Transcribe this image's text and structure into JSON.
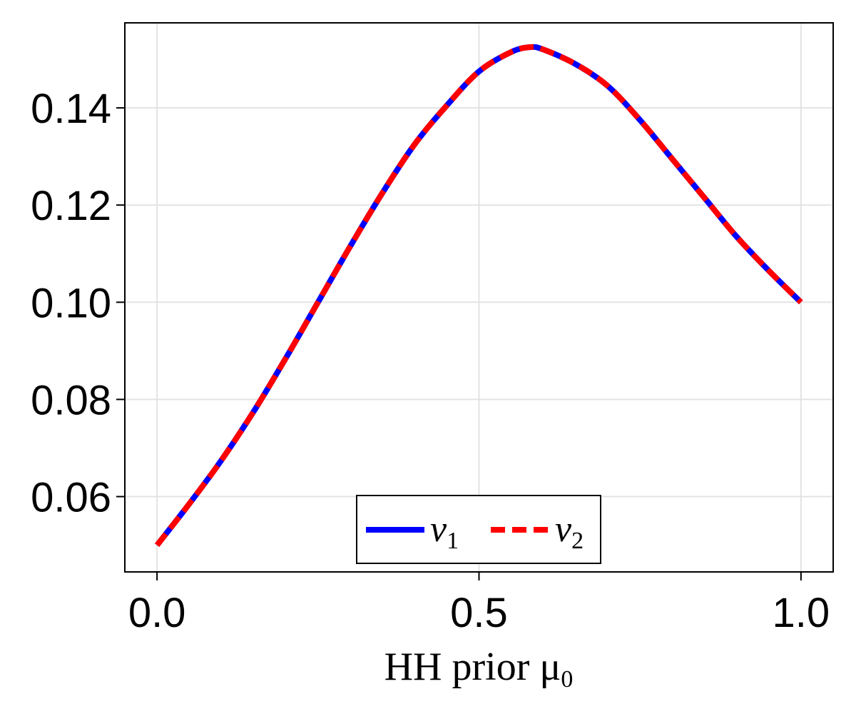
{
  "chart_data": {
    "type": "line",
    "title": "",
    "xlabel": "HH prior μ",
    "xlabel_sub": "0",
    "ylabel": "",
    "xlim": [
      -0.05,
      1.05
    ],
    "ylim": [
      0.0445,
      0.1575
    ],
    "xticks": [
      0.0,
      0.5,
      1.0
    ],
    "xtick_labels": [
      "0.0",
      "0.5",
      "1.0"
    ],
    "yticks": [
      0.06,
      0.08,
      0.1,
      0.12,
      0.14
    ],
    "ytick_labels": [
      "0.06",
      "0.08",
      "0.10",
      "0.12",
      "0.14"
    ],
    "grid": true,
    "legend_position": "bottom-center",
    "x": [
      0.0,
      0.05,
      0.1,
      0.15,
      0.2,
      0.25,
      0.3,
      0.35,
      0.4,
      0.45,
      0.5,
      0.55,
      0.58,
      0.6,
      0.65,
      0.7,
      0.75,
      0.8,
      0.85,
      0.9,
      0.95,
      1.0
    ],
    "series": [
      {
        "name": "ν",
        "name_sub": "1",
        "color": "#0000ff",
        "style": "solid",
        "values": [
          0.05,
          0.0585,
          0.0675,
          0.0775,
          0.0885,
          0.1,
          0.1115,
          0.1225,
          0.1325,
          0.1405,
          0.1475,
          0.1515,
          0.1525,
          0.152,
          0.149,
          0.1445,
          0.1375,
          0.1295,
          0.1215,
          0.1135,
          0.1065,
          0.1
        ]
      },
      {
        "name": "ν",
        "name_sub": "2",
        "color": "#ff0000",
        "style": "dashed",
        "values": [
          0.05,
          0.0585,
          0.0675,
          0.0775,
          0.0885,
          0.1,
          0.1115,
          0.1225,
          0.1325,
          0.1405,
          0.1475,
          0.1515,
          0.1525,
          0.152,
          0.149,
          0.1445,
          0.1375,
          0.1295,
          0.1215,
          0.1135,
          0.1065,
          0.1
        ]
      }
    ]
  }
}
